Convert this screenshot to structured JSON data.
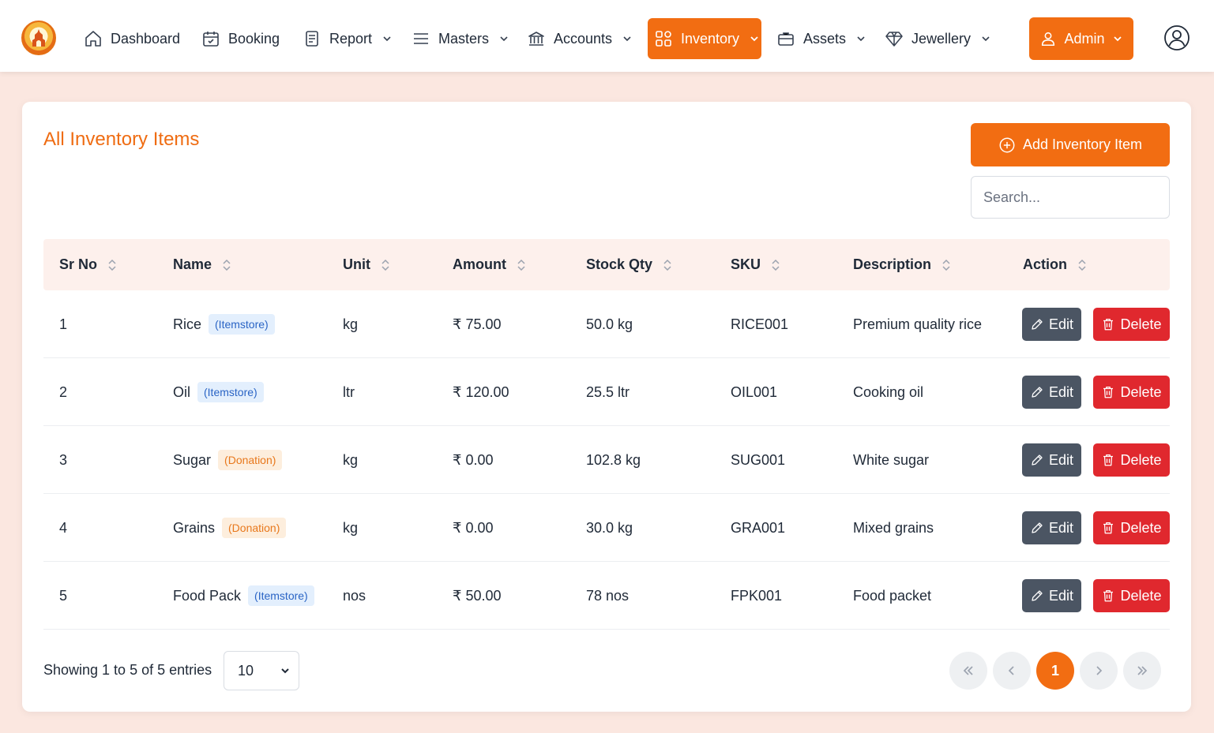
{
  "nav": {
    "items": [
      {
        "label": "Dashboard",
        "icon": "home-icon"
      },
      {
        "label": "Booking",
        "icon": "calendar-icon"
      },
      {
        "label": "Report",
        "icon": "document-icon"
      },
      {
        "label": "Masters",
        "icon": "menu-icon"
      },
      {
        "label": "Accounts",
        "icon": "bank-icon"
      },
      {
        "label": "Inventory",
        "icon": "grid-icon"
      },
      {
        "label": "Assets",
        "icon": "briefcase-icon"
      },
      {
        "label": "Jewellery",
        "icon": "diamond-icon"
      }
    ],
    "admin_label": "Admin",
    "accent_color": "#f26d12"
  },
  "page": {
    "title": "All Inventory Items",
    "add_button_label": "Add Inventory Item",
    "search_placeholder": "Search..."
  },
  "table": {
    "columns": [
      "Sr No",
      "Name",
      "Unit",
      "Amount",
      "Stock Qty",
      "SKU",
      "Description",
      "Action"
    ],
    "rows": [
      {
        "sr": "1",
        "name": "Rice",
        "tag": "(Itemstore)",
        "unit": "kg",
        "amount": "₹ 75.00",
        "stock": "50.0 kg",
        "sku": "RICE001",
        "description": "Premium quality rice"
      },
      {
        "sr": "2",
        "name": "Oil",
        "tag": "(Itemstore)",
        "unit": "ltr",
        "amount": "₹ 120.00",
        "stock": "25.5 ltr",
        "sku": "OIL001",
        "description": "Cooking oil"
      },
      {
        "sr": "3",
        "name": "Sugar",
        "tag": "(Donation)",
        "unit": "kg",
        "amount": "₹ 0.00",
        "stock": "102.8 kg",
        "sku": "SUG001",
        "description": "White sugar"
      },
      {
        "sr": "4",
        "name": "Grains",
        "tag": "(Donation)",
        "unit": "kg",
        "amount": "₹ 0.00",
        "stock": "30.0 kg",
        "sku": "GRA001",
        "description": "Mixed grains"
      },
      {
        "sr": "5",
        "name": "Food Pack",
        "tag": "(Itemstore)",
        "unit": "nos",
        "amount": "₹ 50.00",
        "stock": "78 nos",
        "sku": "FPK001",
        "description": "Food packet"
      }
    ],
    "edit_label": "Edit",
    "delete_label": "Delete"
  },
  "footer": {
    "entries_text": "Showing 1 to 5 of 5 entries",
    "page_size": "10",
    "current_page": "1"
  }
}
